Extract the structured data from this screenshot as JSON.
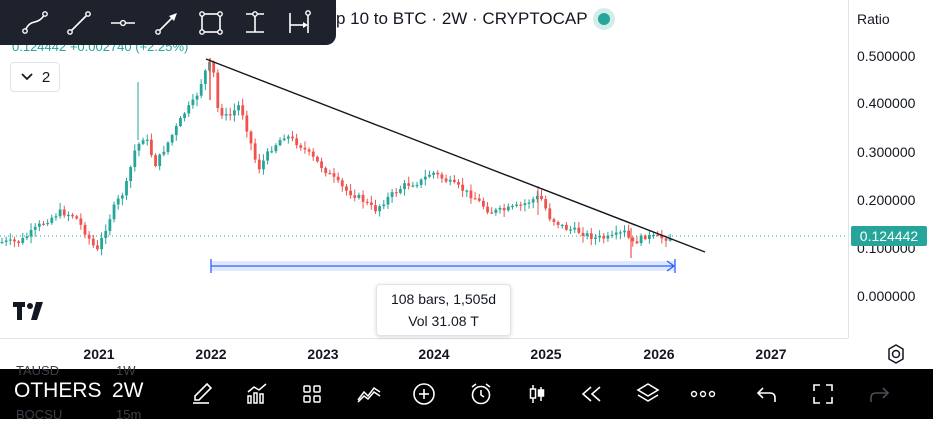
{
  "toolbar": {
    "tools": [
      "trend-line-icon",
      "ray-icon",
      "horizontal-ray-icon",
      "arrow-icon",
      "rectangle-icon",
      "date-range-icon",
      "date-price-range-icon"
    ]
  },
  "header": {
    "title": "p 10 to BTC · 2W · CRYPTOCAP",
    "ohlc": "0.124442 +0.002740 (+2.25%)",
    "indicator_count": "2"
  },
  "price_scale": {
    "mode_label": "Ratio",
    "labels": [
      "0.500000",
      "0.400000",
      "0.300000",
      "0.200000",
      "0.100000",
      "0.000000"
    ],
    "current_price": "0.124442",
    "current_price_color": "#26a69a"
  },
  "time_axis": {
    "labels": [
      "2021",
      "2022",
      "2023",
      "2024",
      "2025",
      "2026",
      "2027"
    ]
  },
  "measure": {
    "line1": "108 bars, 1,505d",
    "line2": "Vol 31.08 T"
  },
  "bottom_bar": {
    "symbol": "OTHERS",
    "interval": "2W",
    "ghost_left": "TAUSD",
    "ghost_left_interval": "1W",
    "ghost_left2": "BOCSU",
    "ghost_left2_interval": "15m"
  },
  "colors": {
    "up": "#26a69a",
    "down": "#ef5350",
    "measure": "#2962ff"
  }
}
